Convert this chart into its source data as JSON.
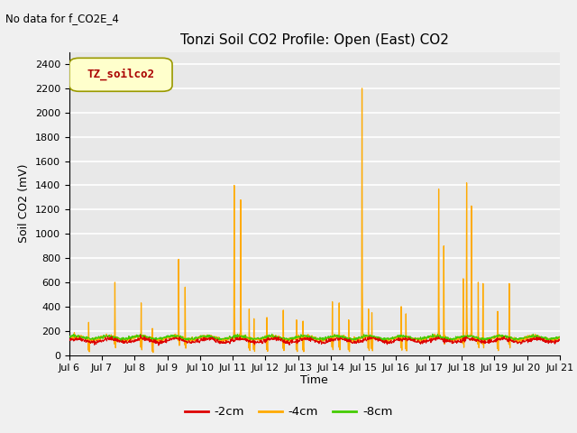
{
  "title": "Tonzi Soil CO2 Profile: Open (East) CO2",
  "no_data_text": "No data for f_CO2E_4",
  "legend_label": "TZ_soilco2",
  "ylabel": "Soil CO2 (mV)",
  "xlabel": "Time",
  "ylim": [
    0,
    2500
  ],
  "yticks": [
    0,
    200,
    400,
    600,
    800,
    1000,
    1200,
    1400,
    1600,
    1800,
    2000,
    2200,
    2400
  ],
  "x_tick_labels": [
    "Jul 6",
    "Jul 7",
    "Jul 8",
    "Jul 9",
    "Jul 10",
    "Jul 11",
    "Jul 12",
    "Jul 13",
    "Jul 14",
    "Jul 15",
    "Jul 16",
    "Jul 17",
    "Jul 18",
    "Jul 19",
    "Jul 20",
    "Jul 21"
  ],
  "series_colors": {
    "2cm": "#dd0000",
    "4cm": "#ffaa00",
    "8cm": "#44cc00"
  },
  "bg_color": "#e8e8e8",
  "grid_color": "#ffffff",
  "title_fontsize": 11,
  "axis_fontsize": 9,
  "tick_fontsize": 8,
  "legend_box_color": "#ffffcc",
  "legend_box_edge": "#999900",
  "legend_text_color": "#aa0000"
}
